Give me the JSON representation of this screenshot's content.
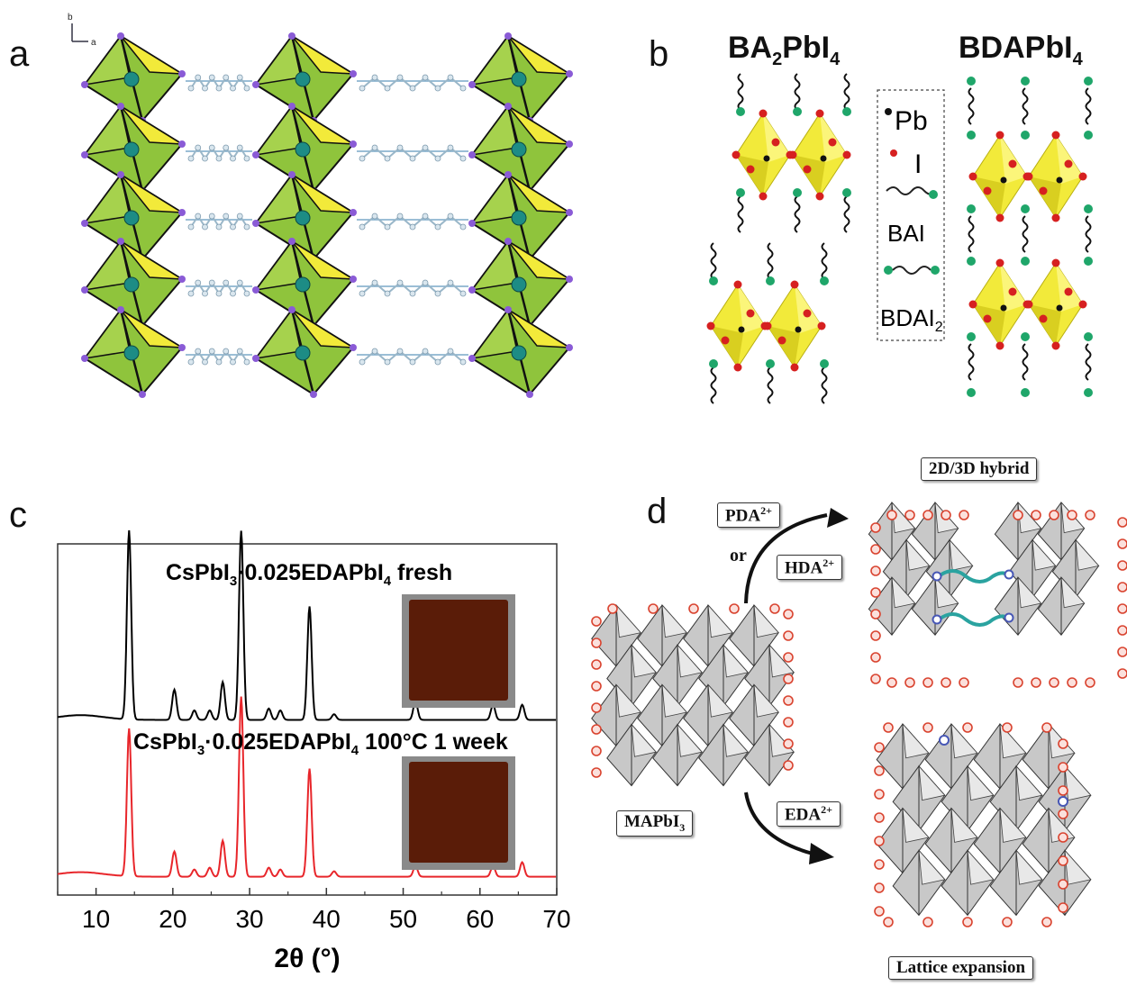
{
  "panels": {
    "a": {
      "label": "a",
      "axis_b": "b",
      "axis_a": "a"
    },
    "b": {
      "label": "b",
      "title_left_main": "BA",
      "title_left_sub": "2",
      "title_left_rest": "PbI",
      "title_left_sub2": "4",
      "title_right_main": "BDAPbI",
      "title_right_sub": "4",
      "legend_pb": "Pb",
      "legend_i": "I",
      "legend_bai": "BAI",
      "legend_bdai": "BDAI",
      "legend_bdai_sub": "2"
    },
    "c": {
      "label": "c"
    },
    "d": {
      "label": "d",
      "top_title": "2D/3D hybrid",
      "pda": "PDA",
      "pda_sup": "2+",
      "or_text": "or",
      "hda": "HDA",
      "hda_sup": "2+",
      "eda": "EDA",
      "eda_sup": "2+",
      "mapbi": "MAPbI",
      "mapbi_sub": "3",
      "bottom_title": "Lattice expansion"
    }
  },
  "chart_data": {
    "type": "line",
    "xlabel": "2θ (°)",
    "xlim": [
      5,
      70
    ],
    "xticks": [
      10,
      20,
      30,
      40,
      50,
      60,
      70
    ],
    "series": [
      {
        "name": "CsPbI3·0.025EDAPbI4 fresh",
        "label_main": "CsPbI",
        "label_sub": "3",
        "label_mid": "·0.025EDAPbI",
        "label_sub2": "4",
        "label_end": " fresh",
        "color": "#000000",
        "peaks": [
          [
            14.3,
            1.0
          ],
          [
            20.2,
            0.16
          ],
          [
            22.8,
            0.05
          ],
          [
            24.8,
            0.05
          ],
          [
            26.5,
            0.2
          ],
          [
            28.9,
            1.0
          ],
          [
            32.5,
            0.06
          ],
          [
            34.0,
            0.05
          ],
          [
            37.8,
            0.6
          ],
          [
            41.0,
            0.03
          ],
          [
            51.6,
            0.1
          ],
          [
            61.7,
            0.08
          ],
          [
            65.5,
            0.08
          ]
        ]
      },
      {
        "name": "CsPbI3·0.025EDAPbI4 100°C 1 week",
        "label_main": "CsPbI",
        "label_sub": "3",
        "label_mid": "·0.025EDAPbI",
        "label_sub2": "4",
        "label_end": " 100°C 1 week",
        "color": "#e8262b",
        "peaks": [
          [
            14.3,
            0.82
          ],
          [
            20.2,
            0.14
          ],
          [
            22.8,
            0.04
          ],
          [
            24.8,
            0.05
          ],
          [
            26.5,
            0.2
          ],
          [
            28.9,
            1.0
          ],
          [
            32.5,
            0.05
          ],
          [
            34.0,
            0.04
          ],
          [
            37.8,
            0.6
          ],
          [
            41.0,
            0.03
          ],
          [
            51.6,
            0.06
          ],
          [
            61.7,
            0.06
          ],
          [
            65.5,
            0.08
          ]
        ]
      }
    ]
  },
  "colors": {
    "octa_green": "#8fc43c",
    "octa_yellow": "#f2ea3a",
    "pb_teal": "#1d8c85",
    "i_purple": "#8a5bd6",
    "red_dot": "#d62020",
    "green_dot": "#1fa66a",
    "gray_octa": "#c8c8c8",
    "photo_brown": "#5a1c08",
    "linker_teal": "#2aa3a0"
  }
}
